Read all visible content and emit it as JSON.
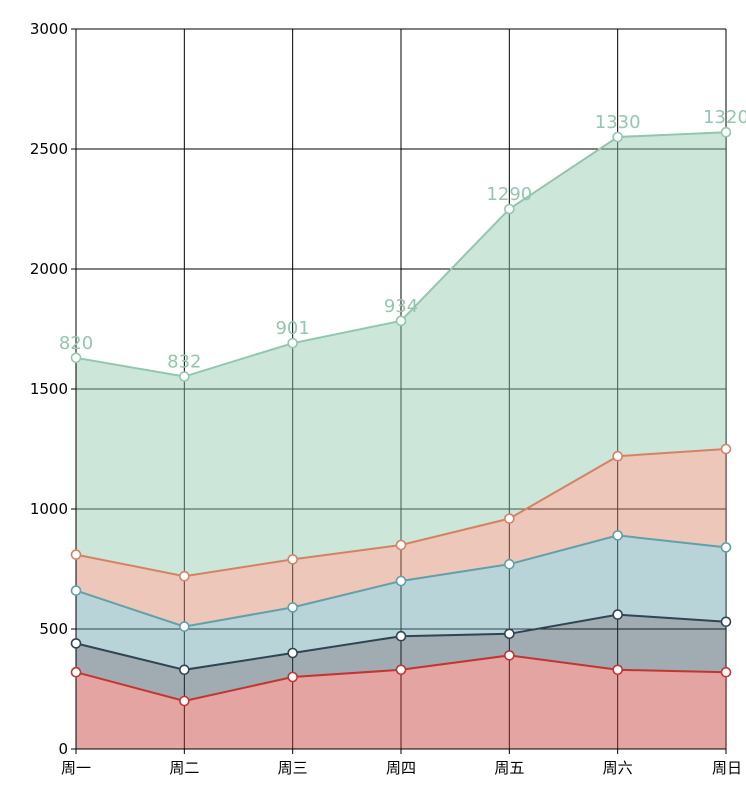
{
  "chart_data": {
    "type": "area",
    "stacked": true,
    "title": "",
    "xlabel": "",
    "ylabel": "",
    "categories": [
      "周一",
      "周二",
      "周三",
      "周四",
      "周五",
      "周六",
      "周日"
    ],
    "ylim": [
      0,
      3000
    ],
    "yticks": [
      0,
      500,
      1000,
      1500,
      2000,
      2500,
      3000
    ],
    "grid": true,
    "legend": "none",
    "series": [
      {
        "values": [
          320,
          200,
          300,
          330,
          390,
          330,
          320
        ],
        "color": "#c23531"
      },
      {
        "values": [
          120,
          130,
          100,
          140,
          90,
          230,
          210
        ],
        "color": "#2f4554"
      },
      {
        "values": [
          220,
          180,
          190,
          230,
          290,
          330,
          310
        ],
        "color": "#61a0a8"
      },
      {
        "values": [
          150,
          210,
          200,
          150,
          190,
          330,
          410
        ],
        "color": "#d48265"
      },
      {
        "values": [
          820,
          832,
          901,
          934,
          1290,
          1330,
          1320
        ],
        "color": "#91c7ae",
        "show_labels": true
      }
    ]
  }
}
